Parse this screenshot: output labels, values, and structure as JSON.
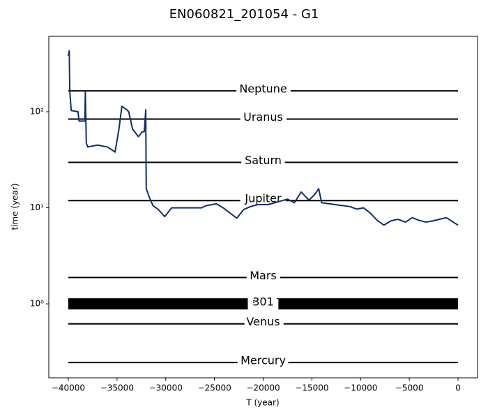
{
  "chart_data": {
    "type": "line",
    "title": "EN060821_201054 - G1",
    "xlabel": "T (year)",
    "ylabel": "time (year)",
    "yscale": "log",
    "x": [
      -40000,
      -39900,
      -39850,
      -39700,
      -39000,
      -38900,
      -38300,
      -38250,
      -38150,
      -38000,
      -37000,
      -36000,
      -35500,
      -35200,
      -34800,
      -34500,
      -34000,
      -33800,
      -33400,
      -32800,
      -32400,
      -32200,
      -32050,
      -32000,
      -31700,
      -31300,
      -30800,
      -30100,
      -29400,
      -28300,
      -26300,
      -25900,
      -24800,
      -24100,
      -23400,
      -22700,
      -22000,
      -21300,
      -20600,
      -19500,
      -17500,
      -16800,
      -16100,
      -15300,
      -14700,
      -14300,
      -14000,
      -12600,
      -11100,
      -10400,
      -9700,
      -9000,
      -8300,
      -7600,
      -6900,
      -6200,
      -5400,
      -4700,
      -4000,
      -3300,
      -2600,
      -1900,
      -1200,
      -500,
      0
    ],
    "series": [
      {
        "color": "#0d2f6e",
        "values": [
          383,
          430,
          165,
          103,
          100,
          80,
          80,
          165,
          47,
          43,
          45,
          43,
          40,
          38,
          66,
          114,
          105,
          100,
          66,
          55,
          62,
          62,
          105,
          15.9,
          13,
          10.5,
          9.7,
          8.1,
          10,
          10,
          10,
          10.5,
          11,
          10,
          8.8,
          7.8,
          9.6,
          10.3,
          10.8,
          10.8,
          12.3,
          11.3,
          14.6,
          12,
          13.8,
          15.8,
          11.3,
          10.8,
          10.3,
          9.7,
          10,
          8.8,
          7.4,
          6.6,
          7.3,
          7.6,
          7.1,
          7.9,
          7.4,
          7.1,
          7.3,
          7.6,
          7.9,
          7.1,
          6.6
        ]
      }
    ],
    "reference_lines": [
      {
        "label": "Neptune",
        "value": 165
      },
      {
        "label": "Uranus",
        "value": 84
      },
      {
        "label": "Saturn",
        "value": 29.7
      },
      {
        "label": "Jupiter",
        "value": 11.9
      },
      {
        "label": "Mars",
        "value": 1.88
      },
      {
        "label": "301",
        "value": 1,
        "thick": true
      },
      {
        "label": "Venus",
        "value": 0.62
      },
      {
        "label": "Mercury",
        "value": 0.245
      }
    ],
    "reference_line_color": "#000000",
    "reference_label_x": -20000,
    "xlim": [
      -42000,
      2000
    ],
    "ylim": [
      0.17,
      610
    ],
    "xticks": [
      {
        "value": -40000,
        "label": "−40000"
      },
      {
        "value": -35000,
        "label": "−35000"
      },
      {
        "value": -30000,
        "label": "−30000"
      },
      {
        "value": -25000,
        "label": "−25000"
      },
      {
        "value": -20000,
        "label": "−20000"
      },
      {
        "value": -15000,
        "label": "−15000"
      },
      {
        "value": -10000,
        "label": "−10000"
      },
      {
        "value": -5000,
        "label": "−5000"
      },
      0
    ],
    "yticks": [
      {
        "value": 1,
        "label": "10⁰"
      },
      {
        "value": 10,
        "label": "10¹"
      },
      {
        "value": 100,
        "label": "10²"
      }
    ]
  }
}
